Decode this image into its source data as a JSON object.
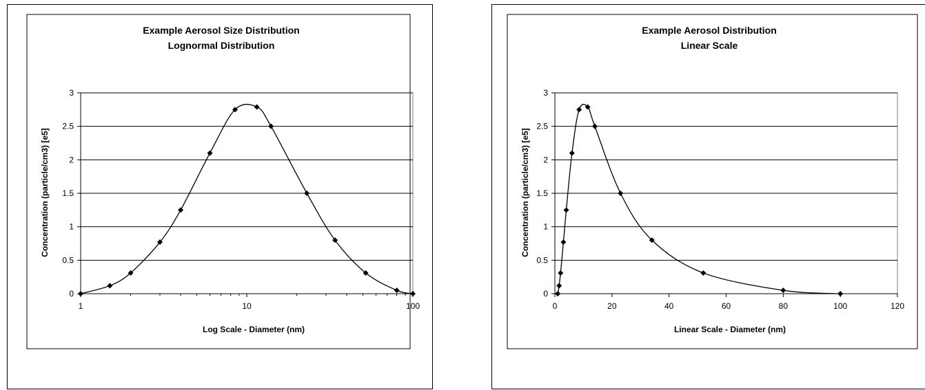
{
  "chart_data": [
    {
      "type": "line",
      "title": [
        "Example Aerosol Size Distribution",
        "Lognormal Distribution"
      ],
      "xlabel": "Log Scale - Diameter (nm)",
      "ylabel": "Concentration (particle/cm3) [e5]",
      "x_scale": "log",
      "xlim": [
        1,
        100
      ],
      "ylim": [
        0,
        3
      ],
      "x_ticks": [
        1,
        10,
        100
      ],
      "x_tick_labels": [
        "1",
        "10",
        "100"
      ],
      "y_ticks": [
        0,
        0.5,
        1,
        1.5,
        2,
        2.5,
        3
      ],
      "y_tick_labels": [
        "0",
        "0.5",
        "1",
        "1.5",
        "2",
        "2.5",
        "3"
      ],
      "grid": "horizontal",
      "series": [
        {
          "x": [
            1,
            1.5,
            2,
            3,
            4,
            6,
            8.5,
            11.5,
            14,
            23,
            34,
            52,
            80,
            100
          ],
          "y": [
            0,
            0.12,
            0.31,
            0.77,
            1.25,
            2.1,
            2.75,
            2.79,
            2.5,
            1.5,
            0.8,
            0.31,
            0.05,
            0
          ]
        }
      ]
    },
    {
      "type": "line",
      "title": [
        "Example Aerosol Distribution",
        "Linear Scale"
      ],
      "xlabel": "Linear Scale - Diameter (nm)",
      "ylabel": "Concentration (particle/cm3) [e5]",
      "x_scale": "linear",
      "xlim": [
        0,
        120
      ],
      "ylim": [
        0,
        3
      ],
      "x_ticks": [
        0,
        20,
        40,
        60,
        80,
        100,
        120
      ],
      "x_tick_labels": [
        "0",
        "20",
        "40",
        "60",
        "80",
        "100",
        "120"
      ],
      "y_ticks": [
        0,
        0.5,
        1,
        1.5,
        2,
        2.5,
        3
      ],
      "y_tick_labels": [
        "0",
        "0.5",
        "1",
        "1.5",
        "2",
        "2.5",
        "3"
      ],
      "grid": "horizontal",
      "series": [
        {
          "x": [
            1,
            1.5,
            2,
            3,
            4,
            6,
            8.5,
            11.5,
            14,
            23,
            34,
            52,
            80,
            100
          ],
          "y": [
            0,
            0.12,
            0.31,
            0.77,
            1.25,
            2.1,
            2.75,
            2.79,
            2.5,
            1.5,
            0.8,
            0.31,
            0.05,
            0
          ]
        }
      ]
    }
  ]
}
